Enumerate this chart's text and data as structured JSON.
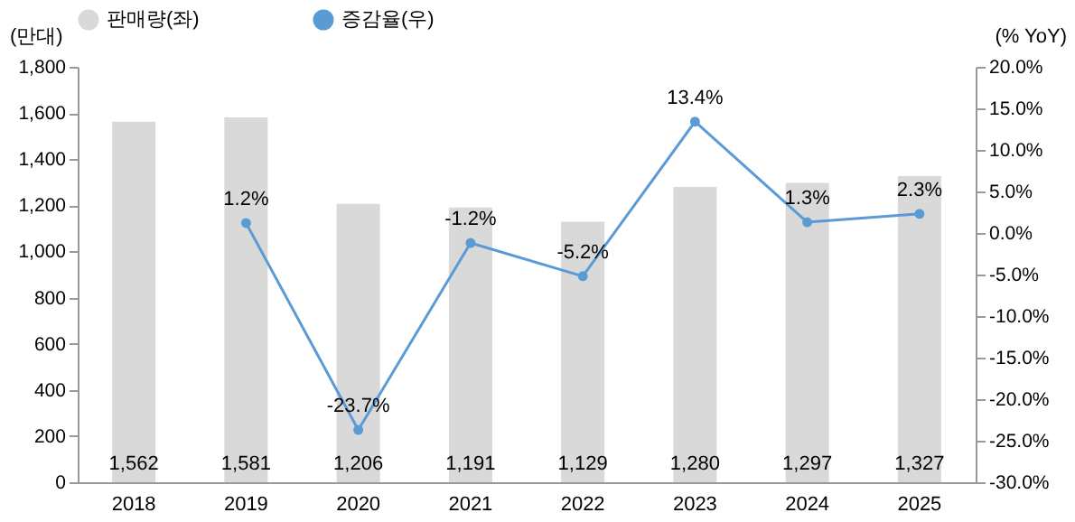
{
  "chart_data": {
    "type": "bar",
    "categories": [
      "2018",
      "2019",
      "2020",
      "2021",
      "2022",
      "2023",
      "2024",
      "2025"
    ],
    "series": [
      {
        "name": "판매량(좌)",
        "color": "#d9d9d9",
        "values": [
          1562,
          1581,
          1206,
          1191,
          1129,
          1280,
          1297,
          1327
        ],
        "value_labels": [
          "1,562",
          "1,581",
          "1,206",
          "1,191",
          "1,129",
          "1,280",
          "1,297",
          "1,327"
        ]
      },
      {
        "name": "증감율(우)",
        "type": "line",
        "axis": "y2",
        "color": "#5b9bd5",
        "values": [
          null,
          1.2,
          -23.7,
          -1.2,
          -5.2,
          13.4,
          1.3,
          2.3
        ],
        "value_labels": [
          null,
          "1.2%",
          "-23.7%",
          "-1.2%",
          "-5.2%",
          "13.4%",
          "1.3%",
          "2.3%"
        ]
      }
    ],
    "ylabel": "(만대)",
    "y2label": "(% YoY)",
    "ylim": [
      0,
      1800
    ],
    "yticks": [
      0,
      {
        "value": 200,
        "label": "200"
      },
      {
        "value": 400,
        "label": "400"
      },
      {
        "value": 600,
        "label": "600"
      },
      {
        "value": 800,
        "label": "800"
      },
      {
        "value": 1000,
        "label": "1,000"
      },
      {
        "value": 1200,
        "label": "1,200"
      },
      {
        "value": 1400,
        "label": "1,400"
      },
      {
        "value": 1600,
        "label": "1,600"
      },
      {
        "value": 1800,
        "label": "1,800"
      }
    ],
    "y2lim": [
      -30,
      20
    ],
    "y2ticks": [
      {
        "value": -30,
        "label": "-30.0%"
      },
      {
        "value": -25,
        "label": "-25.0%"
      },
      {
        "value": -20,
        "label": "-20.0%"
      },
      {
        "value": -15,
        "label": "-15.0%"
      },
      {
        "value": -10,
        "label": "-10.0%"
      },
      {
        "value": -5,
        "label": "-5.0%"
      },
      {
        "value": 0,
        "label": "0.0%"
      },
      {
        "value": 5,
        "label": "5.0%"
      },
      {
        "value": 10,
        "label": "10.0%"
      },
      {
        "value": 15,
        "label": "15.0%"
      },
      {
        "value": 20,
        "label": "20.0%"
      }
    ],
    "legend": "top",
    "marker": "circle"
  }
}
